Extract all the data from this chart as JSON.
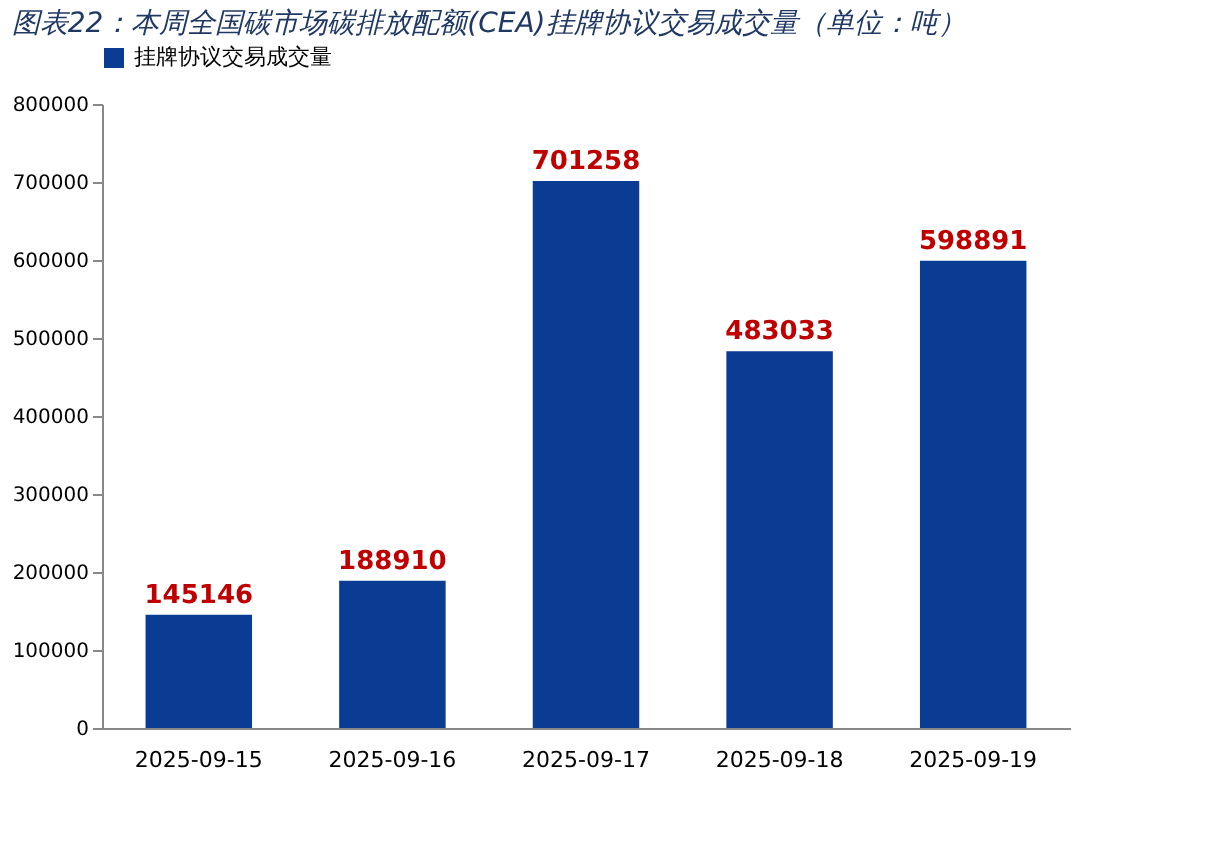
{
  "chart_data": {
    "type": "bar",
    "title": "图表22：本周全国碳市场碳排放配额(CEA)挂牌协议交易成交量（单位：吨）",
    "categories": [
      "2025-09-15",
      "2025-09-16",
      "2025-09-17",
      "2025-09-18",
      "2025-09-19"
    ],
    "series": [
      {
        "name": "挂牌协议交易成交量",
        "color": "#0b3c94",
        "values": [
          145146,
          188910,
          701258,
          483033,
          598891
        ]
      }
    ],
    "ylim": [
      0,
      800000
    ],
    "yticks": [
      0,
      100000,
      200000,
      300000,
      400000,
      500000,
      600000,
      700000,
      800000
    ],
    "data_labels": true,
    "grid": false,
    "legend": "top"
  }
}
